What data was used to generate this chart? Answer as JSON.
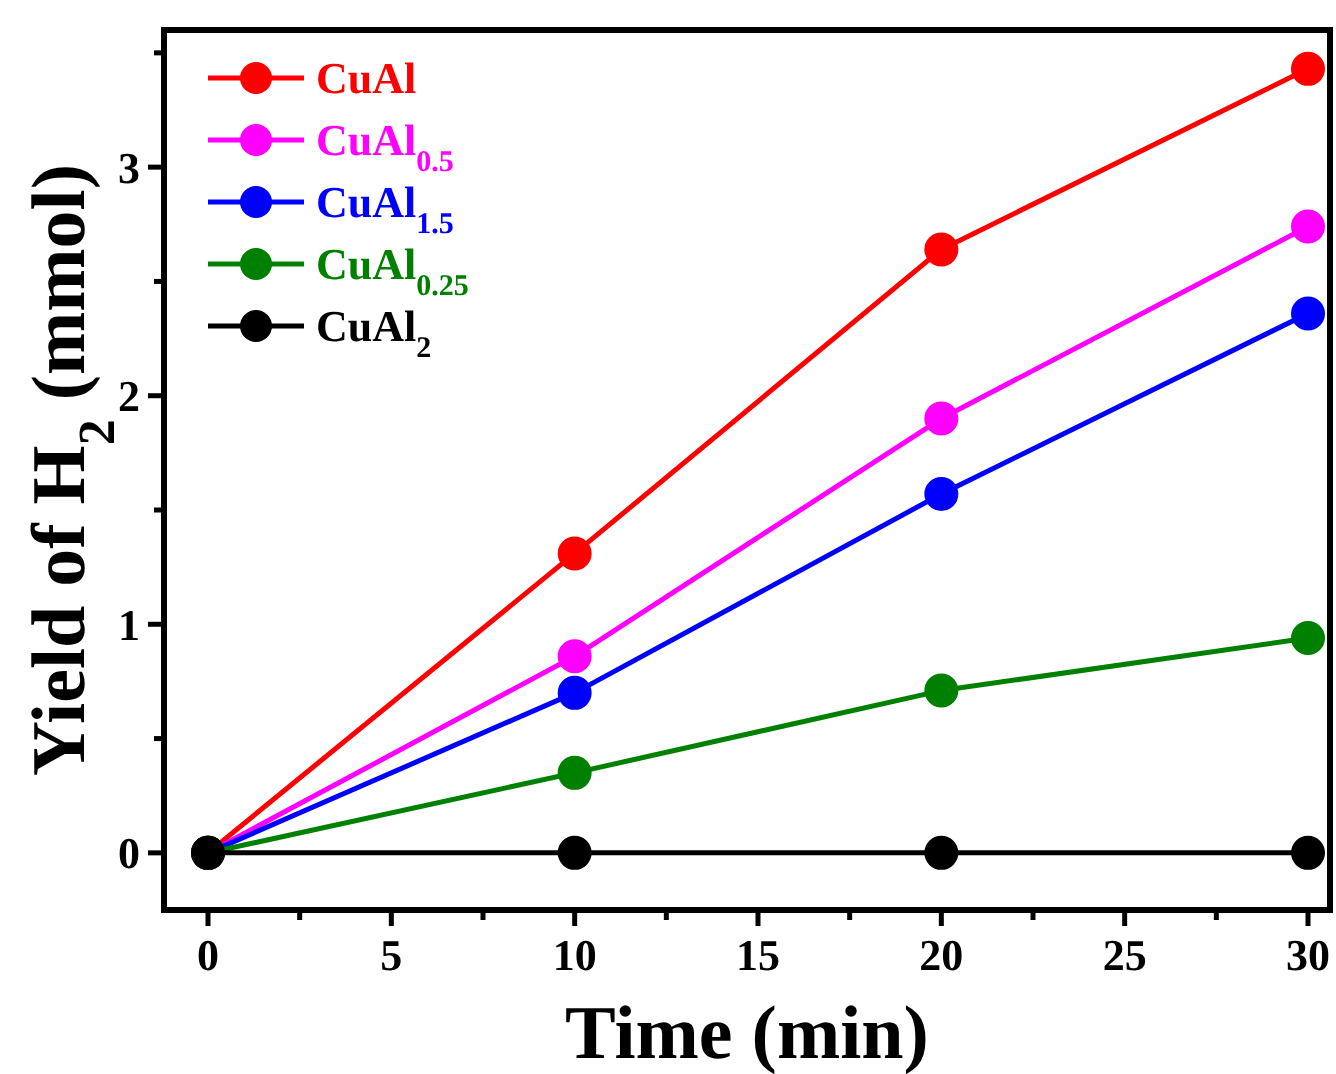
{
  "chart_data": {
    "type": "line",
    "xlabel": "Time (min)",
    "ylabel": "Yield of H$_{2}$ (mmol)",
    "x": [
      0,
      10,
      20,
      30
    ],
    "series": [
      {
        "name": "CuAl",
        "color": "#ff0000",
        "values": [
          0,
          1.31,
          2.64,
          3.43
        ]
      },
      {
        "name": "CuAl$_{0.5}$",
        "color": "#ff00ff",
        "values": [
          0,
          0.86,
          1.9,
          2.74
        ]
      },
      {
        "name": "CuAl$_{1.5}$",
        "color": "#0000ff",
        "values": [
          0,
          0.7,
          1.57,
          2.36
        ]
      },
      {
        "name": "CuAl$_{0.25}$",
        "color": "#008000",
        "values": [
          0,
          0.35,
          0.71,
          0.94
        ]
      },
      {
        "name": "CuAl$_{2}$",
        "color": "#000000",
        "values": [
          0,
          0,
          0,
          0
        ]
      }
    ],
    "xlim": [
      -1.2,
      30.6
    ],
    "ylim": [
      -0.25,
      3.6
    ],
    "xticks": [
      0,
      {
        "value": 2.5,
        "label": null
      },
      5,
      {
        "value": 7.5,
        "label": null
      },
      10,
      {
        "value": 12.5,
        "label": null
      },
      15,
      {
        "value": 17.5,
        "label": null
      },
      20,
      {
        "value": 22.5,
        "label": null
      },
      25,
      {
        "value": 27.5,
        "label": null
      },
      30
    ],
    "yticks": [
      0,
      {
        "value": 0.5,
        "label": null
      },
      1,
      {
        "value": 1.5,
        "label": null
      },
      2,
      {
        "value": 2.5,
        "label": null
      },
      3,
      {
        "value": 3.5,
        "label": null
      }
    ],
    "grid": false,
    "legend": "top left",
    "marker": "circle",
    "line_style": "solid"
  }
}
